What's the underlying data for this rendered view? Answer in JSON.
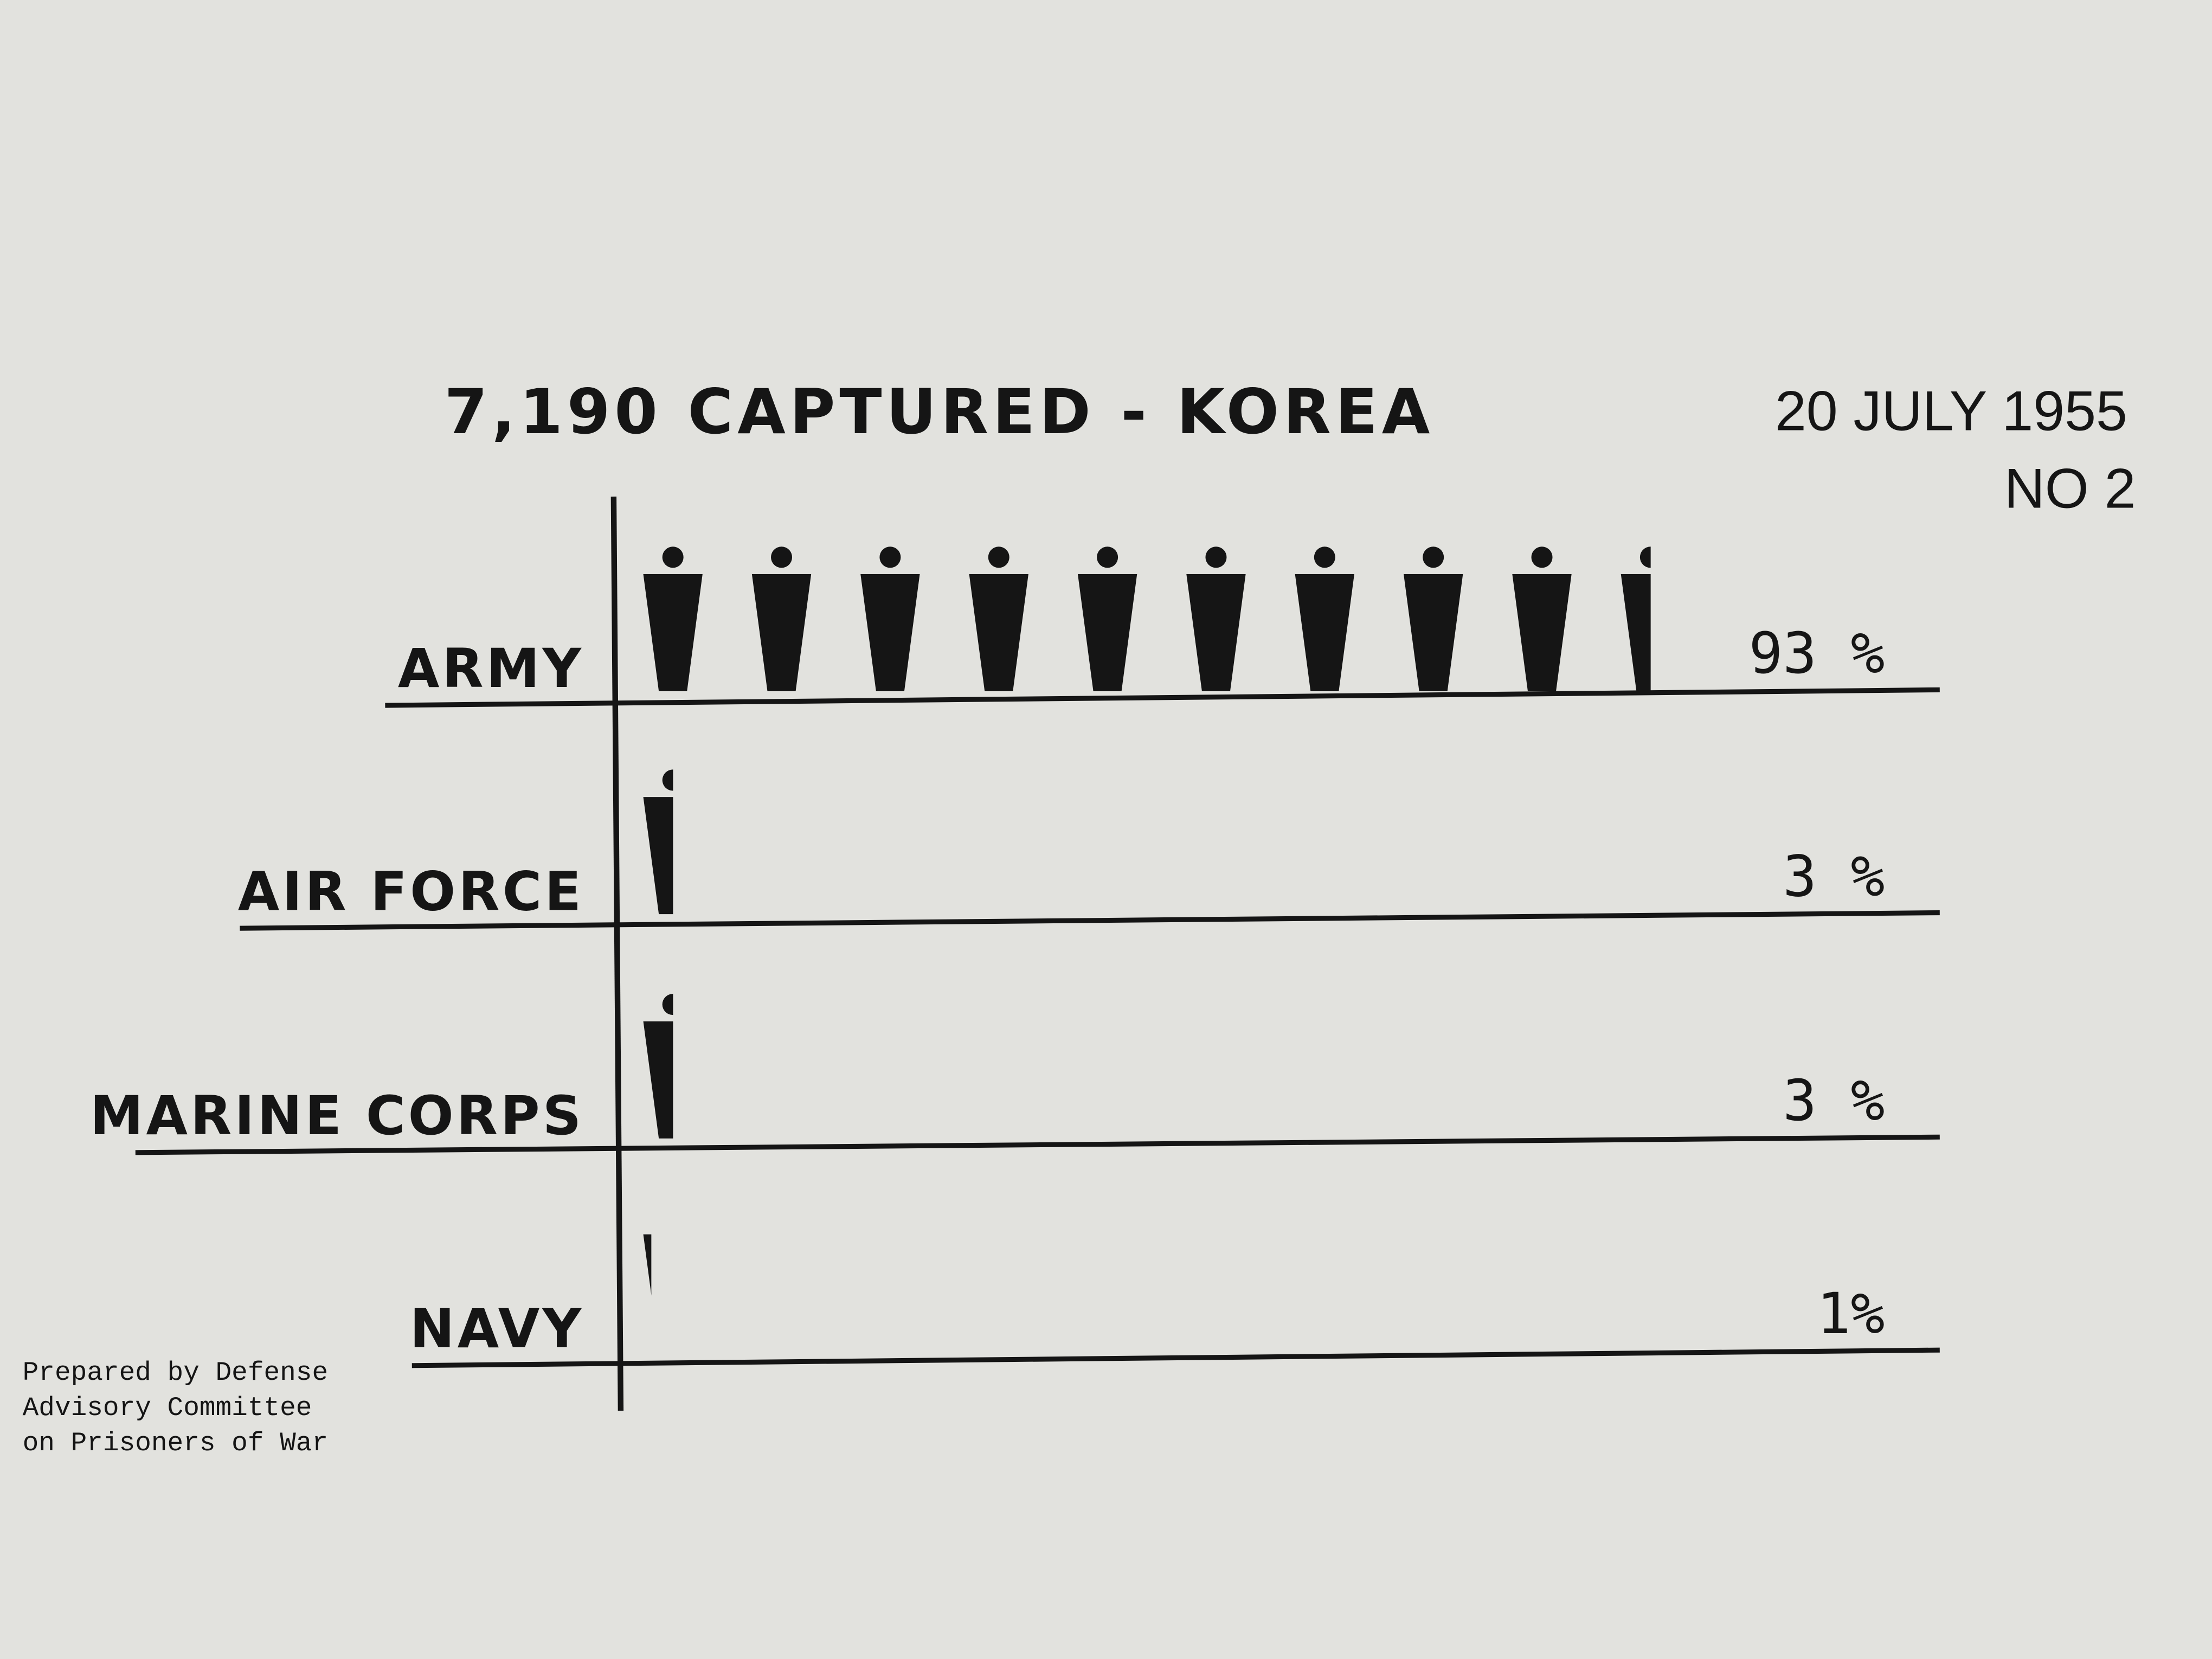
{
  "chart_data": {
    "type": "pictogram",
    "title": "7,190 CAPTURED - KOREA",
    "date": "20 JULY 1955",
    "number": "NO 2",
    "note": [
      "Prepared by Defense",
      "Advisory Committee",
      "on Prisoners of War"
    ],
    "categories": [
      "ARMY",
      "AIR FORCE",
      "MARINE CORPS",
      "NAVY"
    ],
    "values": [
      93,
      3,
      3,
      1
    ],
    "value_labels": [
      "93 %",
      "3 %",
      "3 %",
      "1%"
    ],
    "color": "#151515"
  }
}
